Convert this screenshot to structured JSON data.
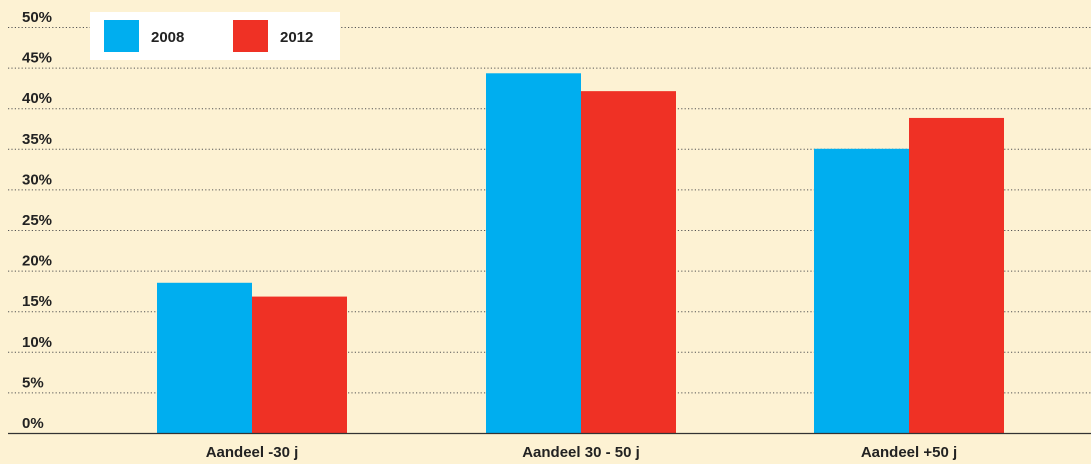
{
  "chart_data": {
    "type": "bar",
    "title": "",
    "xlabel": "",
    "ylabel": "",
    "categories": [
      "Aandeel -30 j",
      "Aandeel 30 - 50 j",
      "Aandeel +50 j"
    ],
    "series": [
      {
        "name": "2008",
        "color": "#00aeef",
        "values": [
          18.5,
          44.3,
          35.0
        ]
      },
      {
        "name": "2012",
        "color": "#ef3125",
        "values": [
          16.8,
          42.1,
          38.8
        ]
      }
    ],
    "ylim": [
      0,
      50
    ],
    "yticks": [
      0,
      5,
      10,
      15,
      20,
      25,
      30,
      35,
      40,
      45,
      50
    ],
    "ytick_labels": [
      "0%",
      "5%",
      "10%",
      "15%",
      "20%",
      "25%",
      "30%",
      "35%",
      "40%",
      "45%",
      "50%"
    ],
    "grid": true,
    "legend_position": "top-left",
    "background_color": "#fdf2d3"
  }
}
